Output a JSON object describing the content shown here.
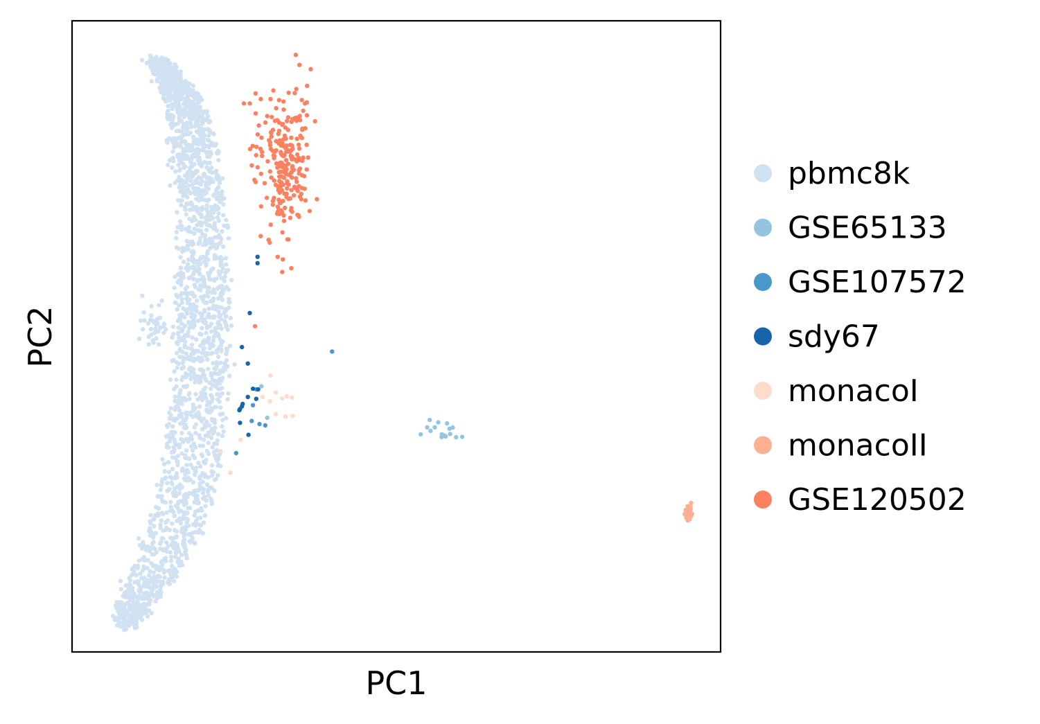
{
  "chart_data": {
    "type": "scatter",
    "title": "",
    "xlabel": "PC1",
    "ylabel": "PC2",
    "xlim": [
      0,
      100
    ],
    "ylim": [
      0,
      100
    ],
    "ticks_shown": false,
    "grid": false,
    "legend_placement": "right-outside",
    "series": [
      {
        "name": "pbmc8k",
        "color": "#d0e1f2",
        "regions": [
          {
            "kind": "band",
            "count": 2300,
            "spine": [
              [
                8,
                4
              ],
              [
                10,
                8
              ],
              [
                13,
                13
              ],
              [
                16,
                20
              ],
              [
                18,
                27
              ],
              [
                19,
                35
              ],
              [
                20,
                43
              ],
              [
                20,
                50
              ],
              [
                20,
                57
              ],
              [
                20,
                64
              ],
              [
                20,
                71
              ],
              [
                19,
                78
              ],
              [
                18,
                84
              ],
              [
                17,
                88
              ],
              [
                15,
                91
              ],
              [
                13,
                94
              ]
            ],
            "halfwidths": [
              1.5,
              2.8,
              3.8,
              4.2,
              4.4,
              4.4,
              4.3,
              4.3,
              4.0,
              3.8,
              3.6,
              3.6,
              3.2,
              2.6,
              2.0,
              1.5
            ]
          },
          {
            "kind": "blob",
            "count": 40,
            "cx": 12.5,
            "cy": 52,
            "sx": 0.9,
            "sy": 1.8
          }
        ]
      },
      {
        "name": "GSE65133",
        "color": "#94c4df",
        "regions": [
          {
            "kind": "blob",
            "count": 16,
            "cx": 57,
            "cy": 35,
            "sx": 1.6,
            "sy": 0.9
          }
        ],
        "points": [
          [
            29.2,
            42.1
          ],
          [
            30.1,
            37.1
          ]
        ]
      },
      {
        "name": "GSE107572",
        "color": "#4a98c9",
        "points": [
          [
            40.1,
            47.6
          ],
          [
            28.4,
            41.6
          ],
          [
            27.7,
            36.6
          ],
          [
            28.9,
            36.1
          ],
          [
            29.8,
            35.9
          ],
          [
            25.3,
            31.5
          ],
          [
            27.9,
            39.1
          ]
        ]
      },
      {
        "name": "sdy67",
        "color": "#1764ab",
        "points": [
          [
            28.6,
            62.6
          ],
          [
            28.6,
            61.6
          ],
          [
            27.4,
            53.7
          ],
          [
            26.2,
            48.3
          ],
          [
            27.1,
            45.7
          ],
          [
            27.9,
            41.7
          ],
          [
            28.7,
            41.6
          ],
          [
            26.3,
            39.3
          ],
          [
            25.9,
            38.5
          ],
          [
            26.2,
            38.9
          ],
          [
            25.9,
            36.3
          ],
          [
            27.2,
            34.4
          ],
          [
            25.8,
            38.3
          ],
          [
            27.1,
            40.4
          ],
          [
            28.4,
            40.1
          ]
        ]
      },
      {
        "name": "monacoI",
        "color": "#fedbcb",
        "points": [
          [
            30.6,
            43.8
          ],
          [
            29.4,
            40.4
          ],
          [
            30.5,
            39.7
          ],
          [
            31.4,
            41.1
          ],
          [
            32.4,
            40.2
          ],
          [
            33.1,
            40.5
          ],
          [
            33.9,
            40.3
          ],
          [
            31.4,
            37.7
          ],
          [
            34.0,
            37.4
          ],
          [
            32.9,
            37.3
          ],
          [
            26.0,
            33.6
          ],
          [
            22.9,
            31.8
          ],
          [
            24.4,
            28.4
          ]
        ]
      },
      {
        "name": "monacoII",
        "color": "#fcaf93",
        "regions": [
          {
            "kind": "blob",
            "count": 45,
            "cx": 95,
            "cy": 22.1,
            "sx": 0.25,
            "sy": 0.6
          }
        ]
      },
      {
        "name": "GSE120502",
        "color": "#fc8161",
        "regions": [
          {
            "kind": "blob",
            "count": 230,
            "cx": 32.8,
            "cy": 77.5,
            "sx": 2.0,
            "sy": 5.2
          }
        ],
        "points": [
          [
            26.5,
            86.9
          ],
          [
            27.4,
            86.9
          ],
          [
            28.3,
            88.5
          ],
          [
            29.1,
            87.6
          ],
          [
            30.1,
            84.9
          ],
          [
            28.8,
            83.4
          ],
          [
            28.6,
            76.8
          ],
          [
            29.3,
            79.2
          ],
          [
            30.3,
            65.3
          ],
          [
            31.7,
            62.6
          ],
          [
            32.5,
            62.2
          ],
          [
            32.4,
            60.2
          ],
          [
            33.8,
            60.8
          ],
          [
            28.2,
            51.6
          ],
          [
            30.6,
            87.6
          ]
        ]
      }
    ]
  }
}
